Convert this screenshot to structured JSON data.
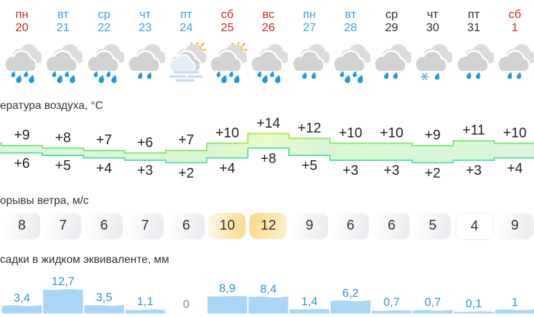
{
  "days": {
    "items": [
      {
        "name": "пн",
        "date": "20",
        "color": "red"
      },
      {
        "name": "вт",
        "date": "21",
        "color": "blue"
      },
      {
        "name": "ср",
        "date": "22",
        "color": "blue"
      },
      {
        "name": "чт",
        "date": "23",
        "color": "blue"
      },
      {
        "name": "пт",
        "date": "24",
        "color": "blue"
      },
      {
        "name": "сб",
        "date": "25",
        "color": "red"
      },
      {
        "name": "вс",
        "date": "26",
        "color": "red"
      },
      {
        "name": "пн",
        "date": "27",
        "color": "blue"
      },
      {
        "name": "вт",
        "date": "28",
        "color": "blue"
      },
      {
        "name": "ср",
        "date": "29",
        "color": "black"
      },
      {
        "name": "чт",
        "date": "30",
        "color": "black"
      },
      {
        "name": "пт",
        "date": "31",
        "color": "black"
      },
      {
        "name": "сб",
        "date": "1",
        "color": "red"
      }
    ]
  },
  "icons": {
    "items": [
      "rain-heavy",
      "rain-heavy",
      "rain-heavy",
      "rain-light",
      "sun-cloud-fog",
      "sun-rain-heavy",
      "rain-heavy",
      "rain-light",
      "rain-heavy",
      "rain-light",
      "sleet",
      "rain-light",
      "rain-light"
    ]
  },
  "temperature": {
    "label": "ература воздуха, °C",
    "max": [
      9,
      8,
      7,
      6,
      7,
      10,
      14,
      12,
      10,
      10,
      9,
      11,
      10
    ],
    "max_labels": [
      "+9",
      "+8",
      "+7",
      "+6",
      "+7",
      "+10",
      "+14",
      "+12",
      "+10",
      "+10",
      "+9",
      "+11",
      "+10"
    ],
    "min": [
      6,
      5,
      4,
      3,
      2,
      4,
      8,
      5,
      3,
      3,
      2,
      3,
      4
    ],
    "min_labels": [
      "+6",
      "+5",
      "+4",
      "+3",
      "+2",
      "+4",
      "+8",
      "+5",
      "+3",
      "+3",
      "+2",
      "+3",
      "+4"
    ],
    "offscreen_left": {
      "max": 10,
      "min": 6
    }
  },
  "wind": {
    "label": "орывы ветра, м/с",
    "values": [
      8,
      7,
      6,
      7,
      6,
      10,
      12,
      9,
      6,
      6,
      5,
      4,
      9
    ],
    "styles": [
      "grey",
      "grey",
      "grey",
      "grey",
      "grey",
      "yellow",
      "yellow-strong",
      "grey",
      "grey",
      "grey",
      "grey",
      "white",
      "grey"
    ]
  },
  "precip": {
    "label": "садки в жидком эквиваленте, мм",
    "labels": [
      "3,4",
      "12,7",
      "3,5",
      "1,1",
      "0",
      "8,9",
      "8,4",
      "1,4",
      "6,2",
      "0,7",
      "0,7",
      "0,1",
      "1"
    ],
    "values": [
      3.4,
      12.7,
      3.5,
      1.1,
      0,
      8.9,
      8.4,
      1.4,
      6.2,
      0.7,
      0.7,
      0.1,
      1
    ]
  },
  "colors": {
    "day_red": "#cb2d24",
    "day_blue": "#3ea1e2",
    "day_black": "#333333",
    "band_fill": "#d9f6d4",
    "band_fill_warm": "#e9fbca",
    "band_stroke_top": "#7de57f",
    "band_stroke_bottom": "#5eddad",
    "wind_yellow": "#f9de96",
    "precip_bar": "#a9d6f4",
    "precip_text": "#2d93d8",
    "rain_drop": "#1f98dc",
    "sun": "#f3b31e"
  },
  "chart_data": [
    {
      "type": "area",
      "title": "ература воздуха, °C",
      "categories": [
        "пн 20",
        "вт 21",
        "ср 22",
        "чт 23",
        "пт 24",
        "сб 25",
        "вс 26",
        "пн 27",
        "вт 28",
        "ср 29",
        "чт 30",
        "пт 31",
        "сб 1"
      ],
      "series": [
        {
          "name": "max",
          "values": [
            9,
            8,
            7,
            6,
            7,
            10,
            14,
            12,
            10,
            10,
            9,
            11,
            10
          ]
        },
        {
          "name": "min",
          "values": [
            6,
            5,
            4,
            3,
            2,
            4,
            8,
            5,
            3,
            3,
            2,
            3,
            4
          ]
        }
      ],
      "ylim": [
        2,
        14
      ],
      "grid": false
    },
    {
      "type": "table",
      "title": "орывы ветра, м/с",
      "categories": [
        "пн 20",
        "вт 21",
        "ср 22",
        "чт 23",
        "пт 24",
        "сб 25",
        "вс 26",
        "пн 27",
        "вт 28",
        "ср 29",
        "чт 30",
        "пт 31",
        "сб 1"
      ],
      "values": [
        8,
        7,
        6,
        7,
        6,
        10,
        12,
        9,
        6,
        6,
        5,
        4,
        9
      ]
    },
    {
      "type": "bar",
      "title": "садки в жидком эквиваленте, мм",
      "categories": [
        "пн 20",
        "вт 21",
        "ср 22",
        "чт 23",
        "пт 24",
        "сб 25",
        "вс 26",
        "пн 27",
        "вт 28",
        "ср 29",
        "чт 30",
        "пт 31",
        "сб 1"
      ],
      "values": [
        3.4,
        12.7,
        3.5,
        1.1,
        0,
        8.9,
        8.4,
        1.4,
        6.2,
        0.7,
        0.7,
        0.1,
        1
      ]
    }
  ]
}
